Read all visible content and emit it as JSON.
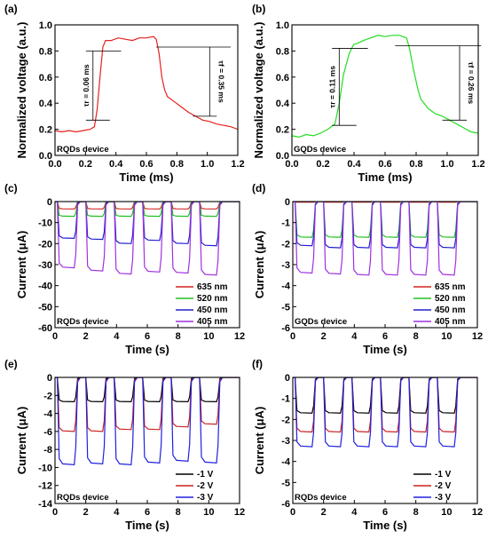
{
  "chart_data": [
    {
      "panel": "(a)",
      "type": "line",
      "xlabel": "Time (ms)",
      "ylabel": "Normalized voltage (a.u.)",
      "xlim": [
        0,
        1.3
      ],
      "ylim": [
        0,
        1.0
      ],
      "xticks": [
        "0.0",
        "0.2",
        "0.4",
        "0.6",
        "0.8",
        "1.0",
        "1.2"
      ],
      "yticks": [
        "0.0",
        "0.2",
        "0.4",
        "0.6",
        "0.8",
        "1.0"
      ],
      "device_label": "RQDs device",
      "series": [
        {
          "color": "#e8201e",
          "x": [
            0,
            0.05,
            0.1,
            0.15,
            0.2,
            0.25,
            0.28,
            0.3,
            0.32,
            0.34,
            0.36,
            0.4,
            0.45,
            0.5,
            0.55,
            0.6,
            0.65,
            0.7,
            0.72,
            0.74,
            0.76,
            0.78,
            0.8,
            0.85,
            0.9,
            0.95,
            1.0,
            1.05,
            1.1,
            1.15,
            1.2,
            1.25,
            1.3
          ],
          "y": [
            0.19,
            0.18,
            0.19,
            0.18,
            0.19,
            0.2,
            0.22,
            0.35,
            0.6,
            0.83,
            0.88,
            0.88,
            0.9,
            0.89,
            0.88,
            0.9,
            0.9,
            0.91,
            0.89,
            0.78,
            0.6,
            0.5,
            0.45,
            0.41,
            0.37,
            0.33,
            0.3,
            0.27,
            0.26,
            0.24,
            0.23,
            0.22,
            0.2
          ]
        }
      ],
      "annotations": [
        {
          "text": "τr = 0.06 ms"
        },
        {
          "text": "τf = 0.35 ms"
        }
      ]
    },
    {
      "panel": "(b)",
      "type": "line",
      "xlabel": "Time (ms)",
      "ylabel": "Normalized voltage (a.u.)",
      "xlim": [
        0,
        1.3
      ],
      "ylim": [
        0,
        1.0
      ],
      "xticks": [
        "0.0",
        "0.2",
        "0.4",
        "0.6",
        "0.8",
        "1.0",
        "1.2"
      ],
      "yticks": [
        "0.0",
        "0.2",
        "0.4",
        "0.6",
        "0.8",
        "1.0"
      ],
      "device_label": "GQDs device",
      "series": [
        {
          "color": "#22dd22",
          "x": [
            0,
            0.05,
            0.1,
            0.15,
            0.2,
            0.25,
            0.3,
            0.33,
            0.36,
            0.4,
            0.43,
            0.46,
            0.5,
            0.55,
            0.6,
            0.65,
            0.7,
            0.75,
            0.8,
            0.82,
            0.85,
            0.88,
            0.9,
            0.95,
            1.0,
            1.05,
            1.1,
            1.15,
            1.2,
            1.25,
            1.3
          ],
          "y": [
            0.15,
            0.14,
            0.16,
            0.15,
            0.17,
            0.2,
            0.24,
            0.4,
            0.62,
            0.78,
            0.85,
            0.86,
            0.88,
            0.9,
            0.92,
            0.91,
            0.92,
            0.92,
            0.9,
            0.82,
            0.65,
            0.5,
            0.43,
            0.36,
            0.32,
            0.3,
            0.27,
            0.24,
            0.21,
            0.18,
            0.17
          ]
        }
      ],
      "annotations": [
        {
          "text": "τr = 0.11 ms"
        },
        {
          "text": "τf = 0.26 ms"
        }
      ]
    },
    {
      "panel": "(c)",
      "type": "line",
      "xlabel": "Time (s)",
      "ylabel": "Current (μA)",
      "xlim": [
        0,
        12
      ],
      "ylim": [
        -60,
        0
      ],
      "xticks": [
        "0",
        "2",
        "4",
        "6",
        "8",
        "10",
        "12"
      ],
      "yticks": [
        "0",
        "-10",
        "-20",
        "-30",
        "-40",
        "-50",
        "-60"
      ],
      "device_label": "RQDs device",
      "legend_position": "bottom-right",
      "pulse_on": [
        0.15,
        2.0,
        3.85,
        5.7,
        7.55,
        9.4
      ],
      "pulse_width": 1.2,
      "series": [
        {
          "name": "635 nm",
          "color": "#d62020",
          "levels": [
            -3.5,
            -3.5,
            -3.5,
            -3.5,
            -3.5,
            -3.5
          ]
        },
        {
          "name": "520 nm",
          "color": "#20c020",
          "levels": [
            -7,
            -7,
            -7,
            -7,
            -7,
            -7
          ]
        },
        {
          "name": "450 nm",
          "color": "#2020d0",
          "levels": [
            -17.5,
            -18,
            -20,
            -18.5,
            -20,
            -21
          ]
        },
        {
          "name": "405 nm",
          "color": "#a030e0",
          "levels": [
            -31.5,
            -33,
            -34.5,
            -33.5,
            -34,
            -35
          ]
        }
      ]
    },
    {
      "panel": "(d)",
      "type": "line",
      "xlabel": "Time (s)",
      "ylabel": "Current (μA)",
      "xlim": [
        0,
        12
      ],
      "ylim": [
        -6,
        0
      ],
      "xticks": [
        "0",
        "2",
        "4",
        "6",
        "8",
        "10",
        "12"
      ],
      "yticks": [
        "0",
        "-1",
        "-2",
        "-3",
        "-4",
        "-5",
        "-6"
      ],
      "device_label": "GQDs device",
      "legend_position": "bottom-right",
      "pulse_on": [
        0.15,
        2.0,
        3.85,
        5.7,
        7.55,
        9.4
      ],
      "pulse_width": 1.2,
      "series": [
        {
          "name": "635 nm",
          "color": "#d62020",
          "levels": [
            -0.03,
            -0.03,
            -0.03,
            -0.03,
            -0.03,
            -0.03
          ]
        },
        {
          "name": "520 nm",
          "color": "#20c020",
          "levels": [
            -1.7,
            -1.7,
            -1.7,
            -1.7,
            -1.7,
            -1.7
          ]
        },
        {
          "name": "450 nm",
          "color": "#2020d0",
          "levels": [
            -2.1,
            -2.2,
            -2.2,
            -2.2,
            -2.2,
            -2.2
          ]
        },
        {
          "name": "405 nm",
          "color": "#a030e0",
          "levels": [
            -3.4,
            -3.45,
            -3.5,
            -3.5,
            -3.5,
            -3.5
          ]
        }
      ]
    },
    {
      "panel": "(e)",
      "type": "line",
      "xlabel": "Time (s)",
      "ylabel": "Current (μA)",
      "xlim": [
        0,
        12
      ],
      "ylim": [
        -14,
        0
      ],
      "xticks": [
        "0",
        "2",
        "4",
        "6",
        "8",
        "10",
        "12"
      ],
      "yticks": [
        "0",
        "-2",
        "-4",
        "-6",
        "-8",
        "-10",
        "-12",
        "-14"
      ],
      "device_label": "RQDs device",
      "legend_position": "bottom-right",
      "pulse_on": [
        0.15,
        2.0,
        3.85,
        5.7,
        7.55,
        9.4
      ],
      "pulse_width": 1.2,
      "series": [
        {
          "name": "-1 V",
          "color": "#000000",
          "levels": [
            -2.7,
            -2.7,
            -2.7,
            -2.7,
            -2.7,
            -2.7
          ]
        },
        {
          "name": "-2 V",
          "color": "#cc2020",
          "levels": [
            -6,
            -6,
            -5.8,
            -5.8,
            -5.5,
            -5.2
          ]
        },
        {
          "name": "-3 V",
          "color": "#2020e0",
          "levels": [
            -9.7,
            -9.6,
            -9.7,
            -9.5,
            -9.3,
            -9.5
          ]
        }
      ]
    },
    {
      "panel": "(f)",
      "type": "line",
      "xlabel": "Time (s)",
      "ylabel": "Current (μA)",
      "xlim": [
        0,
        12
      ],
      "ylim": [
        -6,
        0
      ],
      "xticks": [
        "0",
        "2",
        "4",
        "6",
        "8",
        "10",
        "12"
      ],
      "yticks": [
        "0",
        "-1",
        "-2",
        "-3",
        "-4",
        "-5",
        "-6"
      ],
      "device_label": "RQDs device",
      "legend_position": "bottom-right",
      "pulse_on": [
        0.15,
        2.0,
        3.85,
        5.7,
        7.55,
        9.4
      ],
      "pulse_width": 1.2,
      "series": [
        {
          "name": "-1 V",
          "color": "#000000",
          "levels": [
            -1.7,
            -1.7,
            -1.7,
            -1.7,
            -1.7,
            -1.7
          ]
        },
        {
          "name": "-2 V",
          "color": "#cc2020",
          "levels": [
            -2.6,
            -2.6,
            -2.6,
            -2.6,
            -2.6,
            -2.6
          ]
        },
        {
          "name": "-3 V",
          "color": "#2020e0",
          "levels": [
            -3.3,
            -3.3,
            -3.3,
            -3.3,
            -3.3,
            -3.3
          ]
        }
      ]
    }
  ]
}
